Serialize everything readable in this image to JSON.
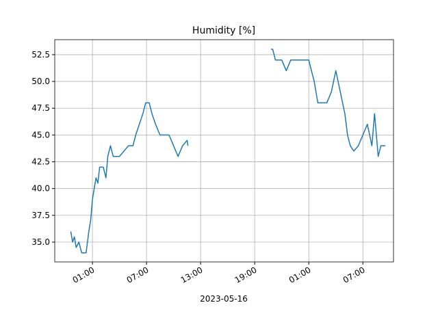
{
  "chart_data": {
    "type": "line",
    "title": "Humidity [%]",
    "x_label": "2023-05-16",
    "x": [
      -1.4,
      -1.2,
      -1.0,
      -0.8,
      -0.5,
      -0.2,
      0.0,
      0.3,
      0.6,
      0.8,
      1.0,
      1.2,
      1.4,
      1.6,
      1.8,
      2.2,
      2.5,
      2.7,
      3.0,
      3.3,
      4.0,
      5.0,
      5.5,
      5.8,
      6.2,
      6.6,
      6.9,
      7.3,
      7.6,
      8.0,
      8.5,
      9.0,
      9.5,
      10.0,
      10.5,
      11.0,
      11.5,
      11.6,
      16.0,
      20.8,
      21.0,
      21.3,
      22.0,
      22.5,
      23.0,
      24.0,
      25.0,
      25.3,
      25.6,
      26.0,
      27.0,
      27.5,
      28.0,
      28.5,
      29.0,
      29.3,
      29.6,
      30.0,
      30.5,
      31.0,
      31.5,
      32.0,
      32.3,
      32.7,
      33.0,
      33.5
    ],
    "series": [
      {
        "name": "Humidity",
        "color": "#1f77b4",
        "values": [
          36,
          35,
          35.5,
          34.5,
          35,
          34,
          34,
          34,
          36,
          37,
          39,
          40,
          41,
          40.5,
          42,
          42,
          41,
          43,
          44,
          43,
          43,
          44,
          44,
          45,
          46,
          47,
          48,
          48,
          47,
          46,
          45,
          45,
          45,
          44,
          43,
          44,
          44.5,
          44,
          null,
          53,
          53,
          52,
          52,
          51,
          52,
          52,
          52,
          51,
          50,
          48,
          48,
          49,
          51,
          49,
          47,
          45,
          44,
          43.5,
          44,
          45,
          46,
          44,
          47,
          43,
          44,
          44
        ]
      }
    ],
    "xlim": [
      -3.18,
      34.4
    ],
    "xticks": [
      {
        "value": 1,
        "label": "01:00"
      },
      {
        "value": 7,
        "label": "07:00"
      },
      {
        "value": 13,
        "label": "13:00"
      },
      {
        "value": 19,
        "label": "19:00"
      },
      {
        "value": 25,
        "label": "01:00"
      },
      {
        "value": 31,
        "label": "07:00"
      }
    ],
    "ylim": [
      33.15,
      53.9
    ],
    "yticks": [
      {
        "value": 35,
        "label": "35.0"
      },
      {
        "value": 37.5,
        "label": "37.5"
      },
      {
        "value": 40,
        "label": "40.0"
      },
      {
        "value": 42.5,
        "label": "42.5"
      },
      {
        "value": 45,
        "label": "45.0"
      },
      {
        "value": 47.5,
        "label": "47.5"
      },
      {
        "value": 50,
        "label": "50.0"
      },
      {
        "value": 52.5,
        "label": "52.5"
      }
    ],
    "grid": true
  }
}
